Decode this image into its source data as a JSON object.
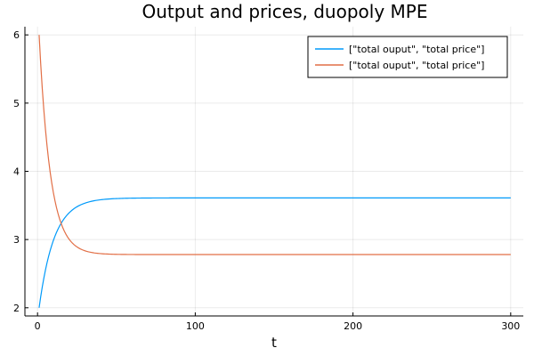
{
  "chart_data": {
    "type": "line",
    "title": "Output and prices, duopoly MPE",
    "xlabel": "t",
    "ylabel": "",
    "xlim": [
      -8,
      308
    ],
    "ylim": [
      1.88,
      6.12
    ],
    "x_ticks": [
      0,
      100,
      200,
      300
    ],
    "y_ticks": [
      2,
      3,
      4,
      5,
      6
    ],
    "x_tick_labels": [
      "0",
      "100",
      "200",
      "300"
    ],
    "y_tick_labels": [
      "2",
      "3",
      "4",
      "5",
      "6"
    ],
    "grid": true,
    "legend_position": "top-right",
    "x_end": 300,
    "series": [
      {
        "name": "[\"total ouput\", \"total price\"]",
        "color": "#009AFA",
        "start": 2.0,
        "end": 3.61,
        "rate": 0.105
      },
      {
        "name": "[\"total ouput\", \"total price\"]",
        "color": "#E26F46",
        "start": 6.0,
        "end": 2.78,
        "rate": 0.14
      }
    ]
  }
}
